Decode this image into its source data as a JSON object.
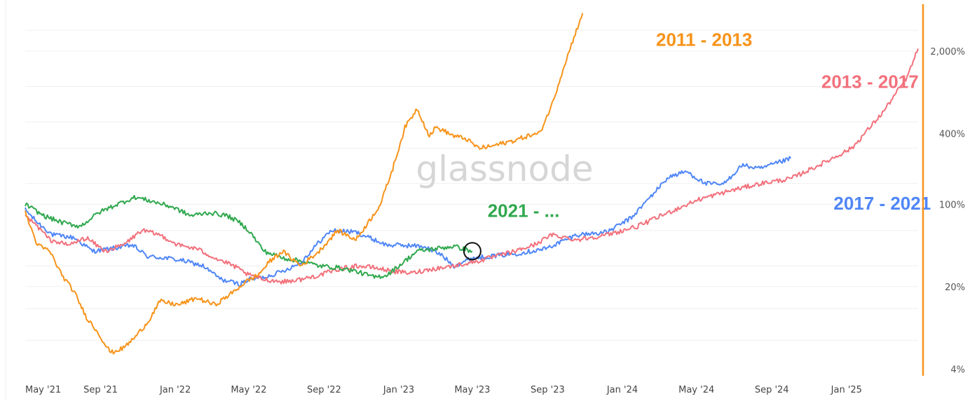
{
  "chart_data": {
    "type": "line",
    "title": "",
    "xlabel": "",
    "ylabel": "",
    "y_scale": "log",
    "ylim": [
      3.5,
      5000
    ],
    "watermark": "glassnode",
    "x_ticks": [
      "May '21",
      "Sep '21",
      "Jan '22",
      "May '22",
      "Sep '22",
      "Jan '23",
      "May '23",
      "Sep '23",
      "Jan '24",
      "May '24",
      "Sep '24",
      "Jan '25"
    ],
    "x_tick_days": [
      0,
      123,
      245,
      365,
      488,
      610,
      730,
      853,
      975,
      1096,
      1219,
      1341
    ],
    "x_range_days": [
      0,
      1458
    ],
    "y_ticks": [
      {
        "value": 4,
        "label": "4%"
      },
      {
        "value": 20,
        "label": "20%"
      },
      {
        "value": 100,
        "label": "100%"
      },
      {
        "value": 400,
        "label": "400%"
      },
      {
        "value": 2000,
        "label": "2,000%"
      }
    ],
    "gridlines": [
      7,
      13,
      20,
      30,
      60,
      100,
      150,
      300,
      500,
      1000,
      2000,
      3000
    ],
    "axis_color": "#f7931a",
    "series": [
      {
        "name": "2017 - 2021",
        "color": "#4f86f7",
        "x": [
          0,
          20,
          45,
          80,
          110,
          140,
          175,
          200,
          230,
          260,
          290,
          320,
          350,
          365,
          390,
          420,
          450,
          480,
          500,
          540,
          570,
          590,
          610,
          650,
          680,
          700,
          730,
          800,
          850,
          900,
          950,
          990,
          1050,
          1080,
          1110,
          1140,
          1170,
          1200,
          1250
        ],
        "values": [
          90,
          70,
          55,
          52,
          40,
          42,
          45,
          36,
          35,
          33,
          30,
          23,
          21,
          23,
          24,
          27,
          32,
          48,
          60,
          58,
          50,
          45,
          45,
          44,
          37,
          30,
          35,
          38,
          42,
          55,
          58,
          77,
          170,
          190,
          150,
          147,
          215,
          200,
          245
        ],
        "label": {
          "text": "2017 - 2021",
          "x": 1320,
          "y": 102
        }
      },
      {
        "name": "2013 - 2017",
        "color": "#f2717c",
        "x": [
          0,
          20,
          40,
          70,
          100,
          130,
          160,
          190,
          220,
          250,
          280,
          310,
          340,
          365,
          390,
          420,
          450,
          480,
          510,
          540,
          570,
          600,
          630,
          660,
          700,
          740,
          800,
          830,
          860,
          900,
          950,
          1000,
          1050,
          1100,
          1150,
          1200,
          1250,
          1300,
          1350,
          1400,
          1440,
          1458
        ],
        "values": [
          80,
          65,
          50,
          45,
          52,
          40,
          45,
          60,
          55,
          45,
          42,
          35,
          30,
          25,
          23,
          22,
          23,
          25,
          28,
          30,
          29,
          27,
          26,
          28,
          30,
          33,
          40,
          45,
          55,
          50,
          55,
          65,
          85,
          110,
          130,
          150,
          165,
          220,
          300,
          600,
          1200,
          2100
        ],
        "label": {
          "text": "2013 - 2017",
          "x": 1300,
          "y": 1100
        }
      },
      {
        "name": "2021 - ...",
        "color": "#30a84e",
        "x": [
          0,
          30,
          60,
          90,
          120,
          150,
          180,
          210,
          240,
          270,
          300,
          330,
          350,
          365,
          390,
          420,
          450,
          480,
          510,
          540,
          570,
          590,
          610,
          640,
          670,
          700,
          730
        ],
        "values": [
          100,
          80,
          70,
          65,
          85,
          100,
          115,
          105,
          95,
          80,
          85,
          80,
          70,
          60,
          40,
          35,
          33,
          30,
          29,
          27,
          24,
          25,
          30,
          40,
          42,
          44,
          40
        ],
        "label": {
          "text": "2021 - ...",
          "x": 755,
          "y": 88
        }
      },
      {
        "name": "2011 - 2013",
        "color": "#f7931a",
        "x": [
          0,
          20,
          40,
          60,
          80,
          100,
          120,
          130,
          140,
          160,
          180,
          200,
          220,
          250,
          280,
          310,
          340,
          360,
          380,
          400,
          420,
          450,
          480,
          510,
          540,
          560,
          580,
          600,
          620,
          640,
          660,
          670,
          680,
          700,
          720,
          740,
          760,
          780,
          800,
          820,
          840,
          860,
          880,
          900,
          910
        ],
        "values": [
          85,
          45,
          40,
          25,
          18,
          11,
          8,
          6.5,
          5.5,
          6,
          7.5,
          10,
          15,
          14,
          16,
          14,
          18,
          22,
          25,
          33,
          40,
          30,
          40,
          60,
          50,
          70,
          100,
          200,
          450,
          650,
          380,
          450,
          430,
          380,
          360,
          300,
          310,
          330,
          350,
          380,
          400,
          700,
          1500,
          3000,
          4200
        ],
        "label": {
          "text": "2011 - 2013",
          "x": 1030,
          "y": 2500
        }
      }
    ],
    "marker": {
      "x_day": 730,
      "value": 40,
      "series": "2021 - ..."
    }
  }
}
